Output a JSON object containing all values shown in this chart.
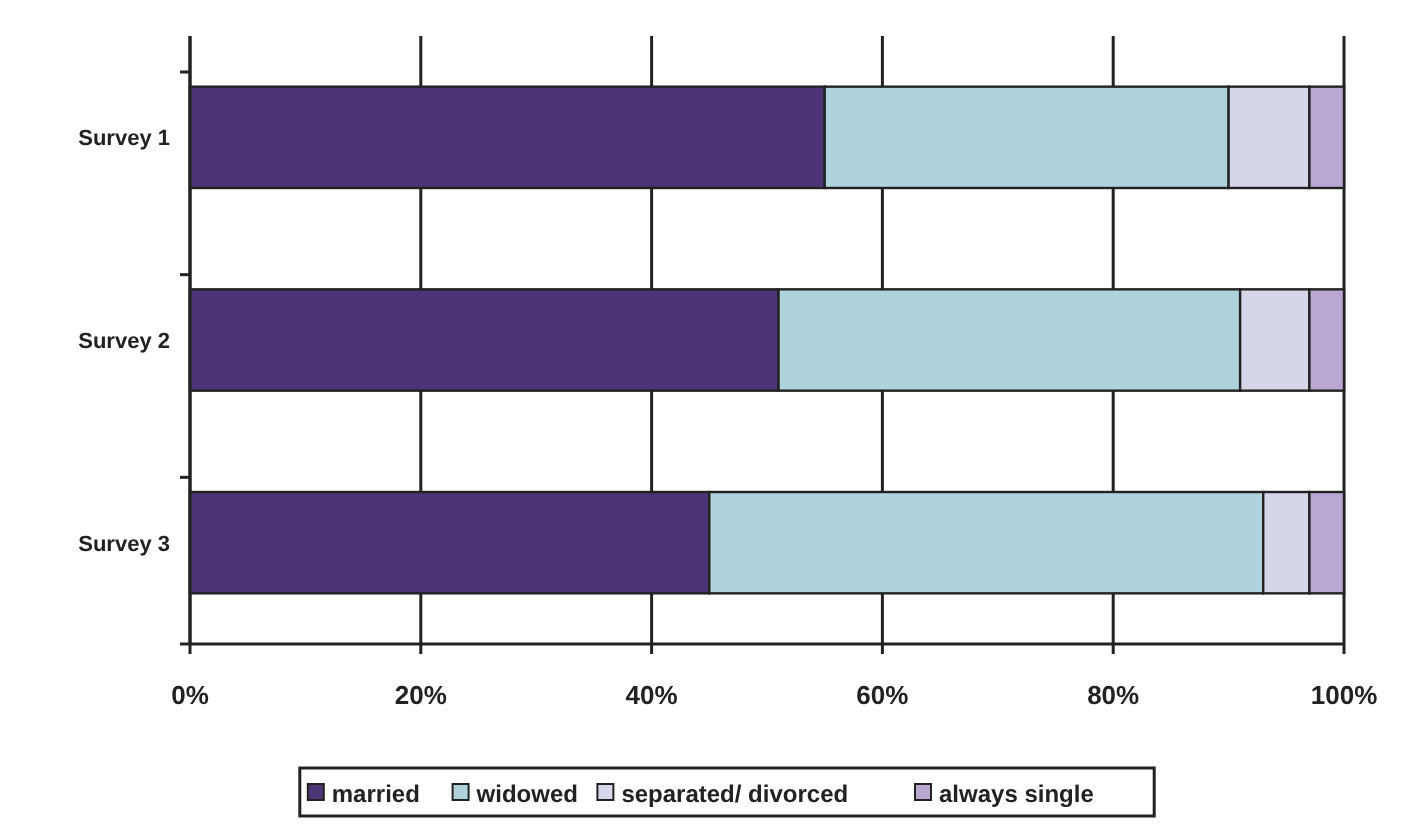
{
  "chart_data": {
    "type": "bar",
    "orientation": "horizontal",
    "stacked": true,
    "categories": [
      "Survey 1",
      "Survey 2",
      "Survey 3"
    ],
    "series": [
      {
        "name": "married",
        "color": "#4b3577",
        "values": [
          55,
          51,
          45
        ]
      },
      {
        "name": "widowed",
        "color": "#aed3dd",
        "values": [
          35,
          40,
          48
        ]
      },
      {
        "name": "separated/ divorced",
        "color": "#d6d6ea",
        "values": [
          7,
          6,
          4
        ]
      },
      {
        "name": "always single",
        "color": "#b9a8d2",
        "values": [
          3,
          3,
          3
        ]
      }
    ],
    "xlim": [
      0,
      100
    ],
    "xticks": [
      {
        "value": 0,
        "label": "0%"
      },
      {
        "value": 20,
        "label": "20%"
      },
      {
        "value": 40,
        "label": "40%"
      },
      {
        "value": 60,
        "label": "60%"
      },
      {
        "value": 80,
        "label": "80%"
      },
      {
        "value": 100,
        "label": "100%"
      }
    ],
    "grid": "x",
    "legend": "bottom"
  }
}
